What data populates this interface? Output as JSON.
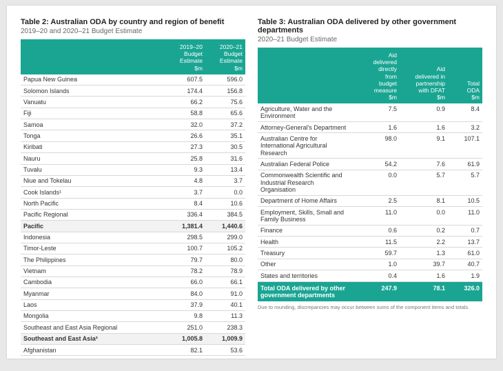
{
  "table2": {
    "title": "Table 2: Australian ODA by country and region of benefit",
    "subtitle": "2019–20 and 2020–21 Budget Estimate",
    "hdr_c1": "2019–20\nBudget\nEstimate\n$m",
    "hdr_c2": "2020–21\nBudget\nEstimate\n$m",
    "rows": [
      {
        "label": "Papua New Guinea",
        "v1": "607.5",
        "v2": "596.0",
        "bold": false
      },
      {
        "label": "Solomon Islands",
        "v1": "174.4",
        "v2": "156.8",
        "bold": false
      },
      {
        "label": "Vanuatu",
        "v1": "66.2",
        "v2": "75.6",
        "bold": false
      },
      {
        "label": "Fiji",
        "v1": "58.8",
        "v2": "65.6",
        "bold": false
      },
      {
        "label": "Samoa",
        "v1": "32.0",
        "v2": "37.2",
        "bold": false
      },
      {
        "label": "Tonga",
        "v1": "26.6",
        "v2": "35.1",
        "bold": false
      },
      {
        "label": "Kiribati",
        "v1": "27.3",
        "v2": "30.5",
        "bold": false
      },
      {
        "label": "Nauru",
        "v1": "25.8",
        "v2": "31.6",
        "bold": false
      },
      {
        "label": "Tuvalu",
        "v1": "9.3",
        "v2": "13.4",
        "bold": false
      },
      {
        "label": "Niue and Tokelau",
        "v1": "4.8",
        "v2": "3.7",
        "bold": false
      },
      {
        "label": "Cook Islands¹",
        "v1": "3.7",
        "v2": "0.0",
        "bold": false
      },
      {
        "label": "North Pacific",
        "v1": "8.4",
        "v2": "10.6",
        "bold": false
      },
      {
        "label": "Pacific Regional",
        "v1": "336.4",
        "v2": "384.5",
        "bold": false
      },
      {
        "label": "Pacific",
        "v1": "1,381.4",
        "v2": "1,440.6",
        "bold": true
      },
      {
        "label": "Indonesia",
        "v1": "298.5",
        "v2": "299.0",
        "bold": false
      },
      {
        "label": "Timor-Leste",
        "v1": "100.7",
        "v2": "105.2",
        "bold": false
      },
      {
        "label": "The Philippines",
        "v1": "79.7",
        "v2": "80.0",
        "bold": false
      },
      {
        "label": "Vietnam",
        "v1": "78.2",
        "v2": "78.9",
        "bold": false
      },
      {
        "label": "Cambodia",
        "v1": "66.0",
        "v2": "66.1",
        "bold": false
      },
      {
        "label": "Myanmar",
        "v1": "84.0",
        "v2": "91.0",
        "bold": false
      },
      {
        "label": "Laos",
        "v1": "37.9",
        "v2": "40.1",
        "bold": false
      },
      {
        "label": "Mongolia",
        "v1": "9.8",
        "v2": "11.3",
        "bold": false
      },
      {
        "label": "Southeast and East Asia Regional",
        "v1": "251.0",
        "v2": "238.3",
        "bold": false
      },
      {
        "label": "Southeast and East Asia²",
        "v1": "1,005.8",
        "v2": "1,009.9",
        "bold": true
      },
      {
        "label": "Afghanistan",
        "v1": "82.1",
        "v2": "53.6",
        "bold": false
      }
    ]
  },
  "table3": {
    "title": "Table 3: Australian ODA delivered by other government departments",
    "subtitle": "2020–21 Budget Estimate",
    "hdr_c1": "Aid\ndelivered\ndirectly\nfrom\nbudget\nmeasure\n$m",
    "hdr_c2": "Aid\ndelivered in\npartnership\nwith DFAT\n$m",
    "hdr_c3": "Total\nODA\n$m",
    "rows": [
      {
        "label": "Agriculture, Water and the Environment",
        "v1": "7.5",
        "v2": "0.9",
        "v3": "8.4"
      },
      {
        "label": "Attorney-General's Department",
        "v1": "1.6",
        "v2": "1.6",
        "v3": "3.2"
      },
      {
        "label": "Australian Centre for International Agricultural Research",
        "v1": "98.0",
        "v2": "9.1",
        "v3": "107.1"
      },
      {
        "label": "Australian Federal Police",
        "v1": "54.2",
        "v2": "7.6",
        "v3": "61.9"
      },
      {
        "label": "Commonwealth Scientific and Industrial Research Organisation",
        "v1": "0.0",
        "v2": "5.7",
        "v3": "5.7"
      },
      {
        "label": "Department of Home Affairs",
        "v1": "2.5",
        "v2": "8.1",
        "v3": "10.5"
      },
      {
        "label": "Employment, Skills, Small and Family Business",
        "v1": "11.0",
        "v2": "0.0",
        "v3": "11.0"
      },
      {
        "label": "Finance",
        "v1": "0.6",
        "v2": "0.2",
        "v3": "0.7"
      },
      {
        "label": "Health",
        "v1": "11.5",
        "v2": "2.2",
        "v3": "13.7"
      },
      {
        "label": "Treasury",
        "v1": "59.7",
        "v2": "1.3",
        "v3": "61.0"
      },
      {
        "label": "Other",
        "v1": "1.0",
        "v2": "39.7",
        "v3": "40.7"
      },
      {
        "label": "States and territories",
        "v1": "0.4",
        "v2": "1.6",
        "v3": "1.9"
      }
    ],
    "total": {
      "label": "Total ODA delivered by other government departments",
      "v1": "247.9",
      "v2": "78.1",
      "v3": "326.0"
    },
    "note": "Due to rounding, discrepancies may occur between sums of the component items and totals."
  }
}
